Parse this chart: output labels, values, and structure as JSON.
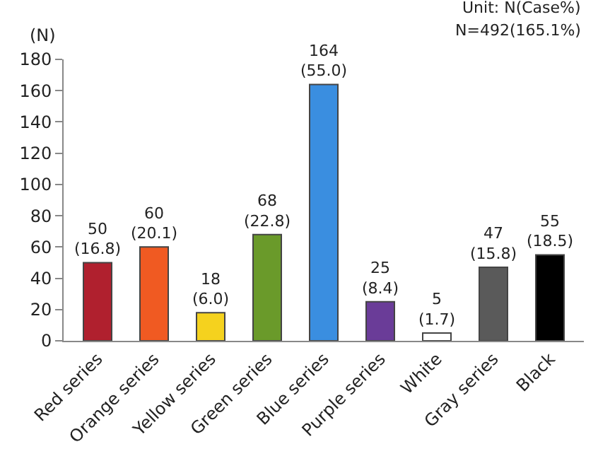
{
  "chart_data": {
    "type": "bar",
    "ylabel": "(N)",
    "categories": [
      "Red series",
      "Orange series",
      "Yellow series",
      "Green series",
      "Blue series",
      "Purple series",
      "White",
      "Gray series",
      "Black"
    ],
    "values": [
      50,
      60,
      18,
      68,
      164,
      25,
      5,
      47,
      55
    ],
    "colors": [
      "#b0202e",
      "#f05a22",
      "#f5d21e",
      "#6a9a2a",
      "#3a8ee0",
      "#6a3c98",
      "#ffffff",
      "#5a5a5a",
      "#000000"
    ],
    "value_labels": [
      "50\n(16.8)",
      "60\n(20.1)",
      "18\n(6.0)",
      "68\n(22.8)",
      "164\n(55.0)",
      "25\n(8.4)",
      "5\n(1.7)",
      "47\n(15.8)",
      "55\n(18.5)"
    ],
    "ylim": [
      0,
      180
    ],
    "yticks": [
      0,
      20,
      40,
      60,
      80,
      100,
      120,
      140,
      160,
      180
    ],
    "annotations": [
      "Unit: N(Case%)",
      "N=492(165.1%)"
    ]
  }
}
